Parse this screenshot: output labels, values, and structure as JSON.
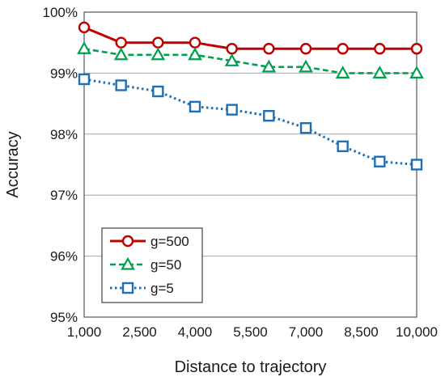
{
  "chart_data": {
    "type": "line",
    "xlabel": "Distance to trajectory",
    "ylabel": "Accuracy",
    "x": [
      1000,
      1750,
      2500,
      3250,
      4000,
      4750,
      5500,
      6250,
      7000,
      7750,
      8500,
      9250,
      10000
    ],
    "xticks": [
      "1,000",
      "2,500",
      "4,000",
      "5,500",
      "7,000",
      "8,500",
      "10,000"
    ],
    "xlim": [
      1000,
      10000
    ],
    "yticks": [
      "95%",
      "96%",
      "97%",
      "98%",
      "99%",
      "100%"
    ],
    "ylim": [
      95,
      100
    ],
    "grid": "horizontal",
    "legend_position": "bottom-left",
    "series": [
      {
        "name": "g=500",
        "color": "#c00000",
        "marker": "circle",
        "line_style": "solid",
        "x": [
          1000,
          2000,
          3000,
          4000,
          5000,
          6000,
          7000,
          8000,
          9000,
          10000
        ],
        "values": [
          99.75,
          99.5,
          99.5,
          99.5,
          99.4,
          99.4,
          99.4,
          99.4,
          99.4,
          99.4
        ]
      },
      {
        "name": "g=50",
        "color": "#00a050",
        "marker": "triangle",
        "line_style": "dashed",
        "x": [
          1000,
          2000,
          3000,
          4000,
          5000,
          6000,
          7000,
          8000,
          9000,
          10000
        ],
        "values": [
          99.4,
          99.3,
          99.3,
          99.3,
          99.2,
          99.1,
          99.1,
          99.0,
          99.0,
          99.0
        ]
      },
      {
        "name": "g=5",
        "color": "#1f6fb4",
        "marker": "square",
        "line_style": "dotted",
        "x": [
          1000,
          2000,
          3000,
          4000,
          5000,
          6000,
          7000,
          8000,
          9000,
          10000
        ],
        "values": [
          98.9,
          98.8,
          98.7,
          98.45,
          98.4,
          98.3,
          98.1,
          97.8,
          97.55,
          97.5
        ]
      }
    ]
  }
}
